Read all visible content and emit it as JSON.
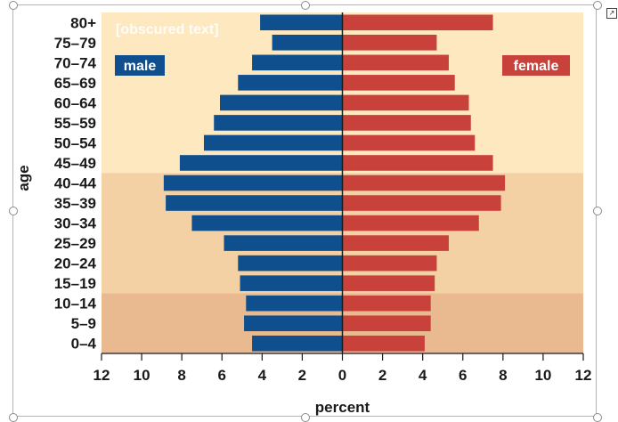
{
  "chart_data": {
    "type": "bar",
    "orientation": "horizontal-population-pyramid",
    "categories": [
      "80+",
      "75–79",
      "70–74",
      "65–69",
      "60–64",
      "55–59",
      "50–54",
      "45–49",
      "40–44",
      "35–39",
      "30–34",
      "25–29",
      "20–24",
      "15–19",
      "10–14",
      "5–9",
      "0–4"
    ],
    "series": [
      {
        "name": "male",
        "color": "#0f4f8e",
        "values": [
          4.1,
          3.5,
          4.5,
          5.2,
          6.1,
          6.4,
          6.9,
          8.1,
          8.9,
          8.8,
          7.5,
          5.9,
          5.2,
          5.1,
          4.8,
          4.9,
          4.5
        ]
      },
      {
        "name": "female",
        "color": "#c8413b",
        "values": [
          7.5,
          4.7,
          5.3,
          5.6,
          6.3,
          6.4,
          6.6,
          7.5,
          8.1,
          7.9,
          6.8,
          5.3,
          4.7,
          4.6,
          4.4,
          4.4,
          4.1
        ]
      }
    ],
    "x_ticks": [
      "12",
      "10",
      "8",
      "6",
      "4",
      "2",
      "0",
      "2",
      "4",
      "6",
      "8",
      "10",
      "12"
    ],
    "xlim": [
      -12,
      12
    ],
    "xlabel": "percent",
    "ylabel": "age",
    "legend": {
      "left_label": "male",
      "right_label": "female"
    },
    "background_bands": [
      {
        "from_category": "80+",
        "to_category": "45–49",
        "color": "#fde8c0"
      },
      {
        "from_category": "40–44",
        "to_category": "15–19",
        "color": "#f3d1a4"
      },
      {
        "from_category": "10–14",
        "to_category": "0–4",
        "color": "#e9b98f"
      }
    ],
    "corner_watermark": "[obscured text]",
    "grid": false
  }
}
